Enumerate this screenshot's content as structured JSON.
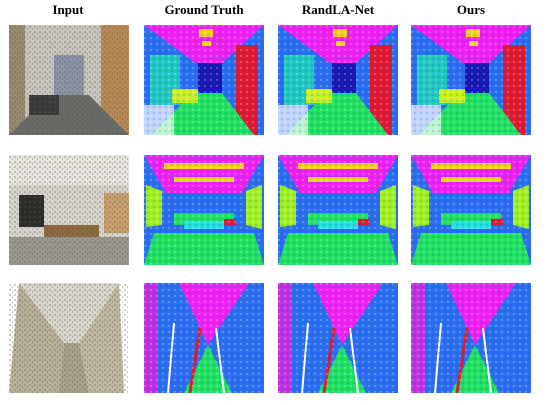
{
  "figure": {
    "columns": [
      "Input",
      "Ground Truth",
      "RandLA-Net",
      "Ours"
    ]
  }
}
